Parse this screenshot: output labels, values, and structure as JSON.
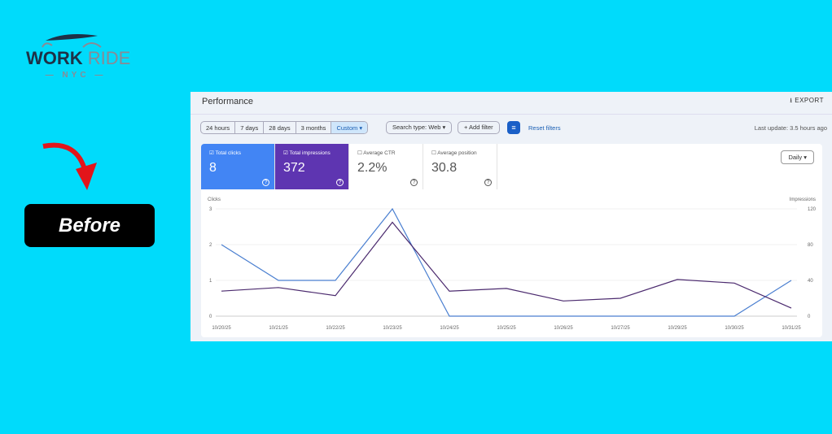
{
  "brand": {
    "name1": "WORK",
    "name2": "RIDE",
    "sub": "— NYC —"
  },
  "label": "Before",
  "header": {
    "title": "Performance",
    "export": "EXPORT"
  },
  "ranges": [
    "24 hours",
    "7 days",
    "28 days",
    "3 months",
    "Custom ▾"
  ],
  "search_type": "Search type: Web ▾",
  "add_filter": "+ Add filter",
  "reset": "Reset filters",
  "last_update": "Last update: 3.5 hours ago",
  "metrics": [
    {
      "label": "☑ Total clicks",
      "value": "8"
    },
    {
      "label": "☑ Total impressions",
      "value": "372"
    },
    {
      "label": "☐ Average CTR",
      "value": "2.2%"
    },
    {
      "label": "☐ Average position",
      "value": "30.8"
    }
  ],
  "granularity": "Daily ▾",
  "chart_data": {
    "type": "line",
    "x": [
      "10/20/25",
      "10/21/25",
      "10/22/25",
      "10/23/25",
      "10/24/25",
      "10/25/25",
      "10/26/25",
      "10/27/25",
      "10/29/25",
      "10/30/25",
      "10/31/25"
    ],
    "ylabel_left": "Clicks",
    "ylabel_right": "Impressions",
    "yticks_left": [
      "0",
      "1",
      "2",
      "3"
    ],
    "yticks_right": [
      "0",
      "40",
      "80",
      "120"
    ],
    "ylim_left": [
      0,
      3
    ],
    "ylim_right": [
      0,
      120
    ],
    "series": [
      {
        "name": "Clicks",
        "axis": "left",
        "color": "#4a7fd0",
        "values": [
          2,
          1,
          1,
          3,
          0,
          0,
          0,
          0,
          0,
          0,
          1
        ]
      },
      {
        "name": "Impressions",
        "axis": "right",
        "color": "#4b2a6e",
        "values": [
          28,
          32,
          23,
          105,
          28,
          31,
          17,
          20,
          41,
          37,
          9
        ]
      }
    ]
  }
}
